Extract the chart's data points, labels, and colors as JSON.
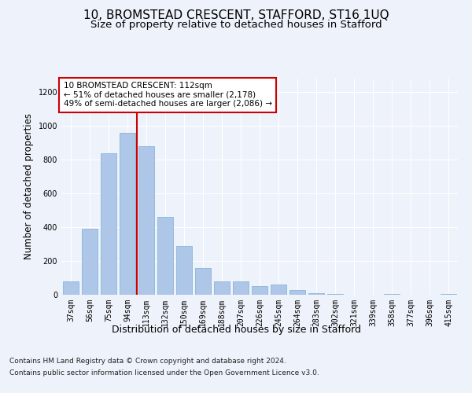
{
  "title": "10, BROMSTEAD CRESCENT, STAFFORD, ST16 1UQ",
  "subtitle": "Size of property relative to detached houses in Stafford",
  "xlabel": "Distribution of detached houses by size in Stafford",
  "ylabel": "Number of detached properties",
  "footer_line1": "Contains HM Land Registry data © Crown copyright and database right 2024.",
  "footer_line2": "Contains public sector information licensed under the Open Government Licence v3.0.",
  "categories": [
    "37sqm",
    "56sqm",
    "75sqm",
    "94sqm",
    "113sqm",
    "132sqm",
    "150sqm",
    "169sqm",
    "188sqm",
    "207sqm",
    "226sqm",
    "245sqm",
    "264sqm",
    "283sqm",
    "302sqm",
    "321sqm",
    "339sqm",
    "358sqm",
    "377sqm",
    "396sqm",
    "415sqm"
  ],
  "values": [
    80,
    390,
    840,
    960,
    880,
    460,
    290,
    160,
    80,
    80,
    50,
    60,
    30,
    10,
    5,
    0,
    0,
    5,
    0,
    0,
    5
  ],
  "bar_color": "#aec6e8",
  "bar_edge_color": "#7aafd4",
  "highlight_index": 4,
  "highlight_line_color": "#cc0000",
  "annotation_text": "10 BROMSTEAD CRESCENT: 112sqm\n← 51% of detached houses are smaller (2,178)\n49% of semi-detached houses are larger (2,086) →",
  "annotation_box_color": "#ffffff",
  "annotation_box_edge_color": "#cc0000",
  "ylim": [
    0,
    1280
  ],
  "yticks": [
    0,
    200,
    400,
    600,
    800,
    1000,
    1200
  ],
  "background_color": "#eef2fa",
  "plot_background_color": "#eef2fa",
  "grid_color": "#ffffff",
  "title_fontsize": 11,
  "subtitle_fontsize": 9.5,
  "tick_fontsize": 7,
  "ylabel_fontsize": 8.5,
  "xlabel_fontsize": 9,
  "footer_fontsize": 6.5,
  "annotation_fontsize": 7.5
}
